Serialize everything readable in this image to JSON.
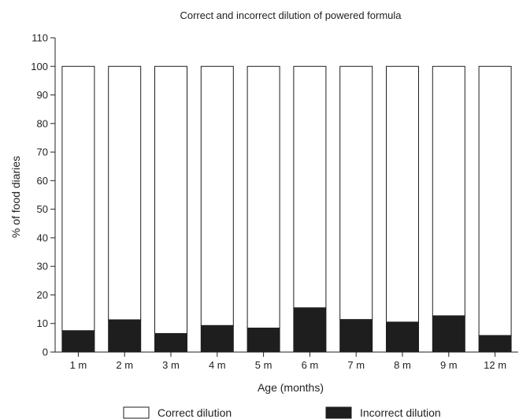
{
  "chart_data": {
    "type": "bar",
    "stacked": true,
    "title": "Correct and incorrect dilution of powered formula",
    "xlabel": "Age (months)",
    "ylabel": "% of food diaries",
    "ylim": [
      0,
      110
    ],
    "yticks": [
      0,
      10,
      20,
      30,
      40,
      50,
      60,
      70,
      80,
      90,
      100,
      110
    ],
    "categories": [
      "1 m",
      "2 m",
      "3 m",
      "4 m",
      "5 m",
      "6 m",
      "7 m",
      "8 m",
      "9 m",
      "12 m"
    ],
    "series": [
      {
        "name": "Incorrect dilution",
        "color": "#1e1e1e",
        "values": [
          7.5,
          11.3,
          6.5,
          9.3,
          8.4,
          15.5,
          11.4,
          10.5,
          12.7,
          5.8
        ]
      },
      {
        "name": "Correct dilution",
        "color": "#ffffff",
        "values": [
          92.5,
          88.7,
          93.5,
          90.7,
          91.6,
          84.5,
          88.6,
          89.5,
          87.3,
          94.2
        ]
      }
    ],
    "grid": false,
    "legend": {
      "position": "bottom",
      "entries": [
        "Correct dilution",
        "Incorrect dilution"
      ]
    }
  }
}
